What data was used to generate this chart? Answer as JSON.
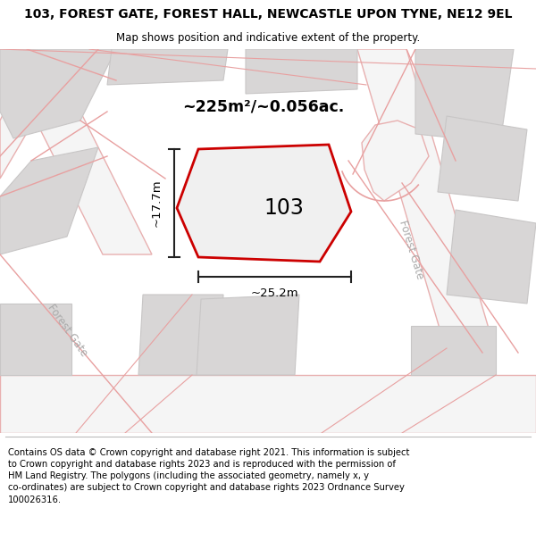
{
  "title": "103, FOREST GATE, FOREST HALL, NEWCASTLE UPON TYNE, NE12 9EL",
  "subtitle": "Map shows position and indicative extent of the property.",
  "footer": "Contains OS data © Crown copyright and database right 2021. This information is subject to Crown copyright and database rights 2023 and is reproduced with the permission of HM Land Registry. The polygons (including the associated geometry, namely x, y co-ordinates) are subject to Crown copyright and database rights 2023 Ordnance Survey 100026316.",
  "area_text": "~225m²/~0.056ac.",
  "width_label": "~25.2m",
  "height_label": "~17.7m",
  "number_label": "103",
  "road_label_right": "Forest Gate",
  "road_label_left": "Forest Gate",
  "title_fontsize": 10,
  "subtitle_fontsize": 8.5,
  "footer_fontsize": 7.2,
  "map_bg": "#ebebeb",
  "building_color": "#d8d6d6",
  "building_edge": "#c8c6c6",
  "road_fill": "#f5f5f5",
  "road_outline_color": "#e8b0b0",
  "property_color": "#cc0000",
  "dim_color": "#222222",
  "road_label_color": "#aaaaaa"
}
